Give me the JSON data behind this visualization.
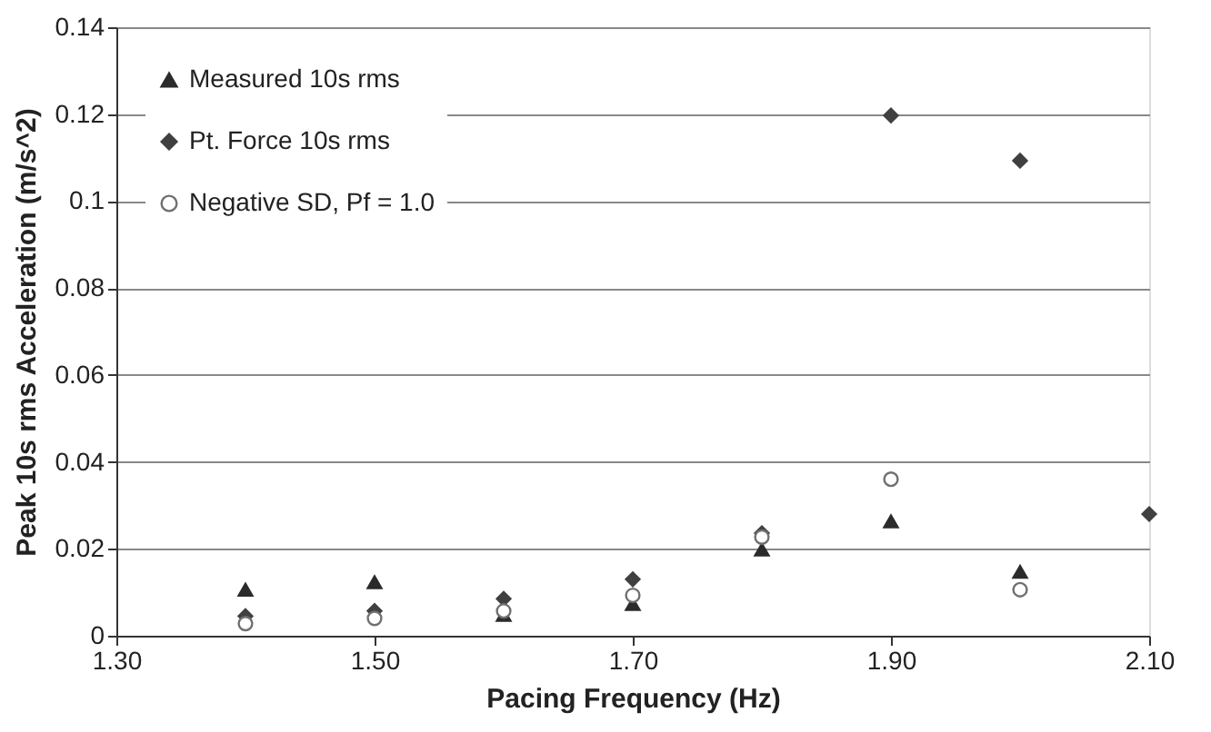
{
  "chart_data": {
    "type": "scatter",
    "xlabel": "Pacing Frequency (Hz)",
    "ylabel": "Peak 10s rms Acceleration (m/s^2)",
    "x": [
      1.4,
      1.5,
      1.6,
      1.7,
      1.8,
      1.9,
      2.0,
      2.1
    ],
    "series": [
      {
        "name": "Measured 10s rms",
        "color": "#2b2b2b",
        "marker": "triangle",
        "values": [
          0.0106,
          0.0123,
          0.0048,
          0.0073,
          0.0198,
          0.0263,
          0.0147,
          null
        ]
      },
      {
        "name": "Pt. Force 10s rms",
        "color": "#404040",
        "marker": "diamond",
        "values": [
          0.0045,
          0.0057,
          0.0085,
          0.013,
          0.0236,
          0.1197,
          0.1093,
          0.028
        ]
      },
      {
        "name": "Negative SD, Pf = 1.0",
        "color": "#707070",
        "marker": "circle",
        "values": [
          0.0028,
          0.004,
          0.0057,
          0.0093,
          0.0227,
          0.036,
          0.0106,
          null
        ]
      }
    ],
    "xlim": [
      1.3,
      2.1
    ],
    "xticks": [
      {
        "value": 1.3,
        "label": "1.30"
      },
      {
        "value": 1.5,
        "label": "1.50"
      },
      {
        "value": 1.7,
        "label": "1.70"
      },
      {
        "value": 1.9,
        "label": "1.90"
      },
      {
        "value": 2.1,
        "label": "2.10"
      }
    ],
    "ylim": [
      0,
      0.14
    ],
    "yticks": [
      0,
      0.02,
      0.04,
      0.06,
      0.08,
      0.1,
      0.12,
      0.14
    ],
    "grid": "y",
    "legend": "top left"
  }
}
